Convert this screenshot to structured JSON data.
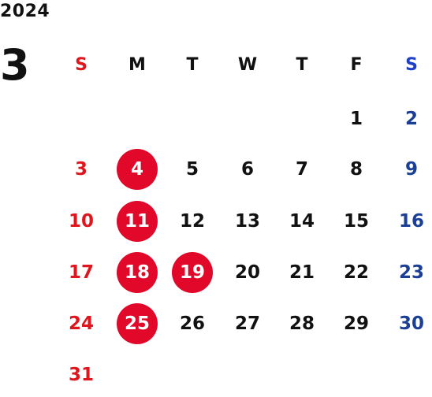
{
  "year": "2024",
  "month": "3",
  "weekday_headers": [
    "S",
    "M",
    "T",
    "W",
    "T",
    "F",
    "S"
  ],
  "weeks": [
    [
      "",
      "",
      "",
      "",
      "",
      "1",
      "2"
    ],
    [
      "3",
      "4",
      "5",
      "6",
      "7",
      "8",
      "9"
    ],
    [
      "10",
      "11",
      "12",
      "13",
      "14",
      "15",
      "16"
    ],
    [
      "17",
      "18",
      "19",
      "20",
      "21",
      "22",
      "23"
    ],
    [
      "24",
      "25",
      "26",
      "27",
      "28",
      "29",
      "30"
    ],
    [
      "31",
      "",
      "",
      "",
      "",
      "",
      ""
    ]
  ],
  "highlighted_days": [
    "4",
    "11",
    "18",
    "19",
    "25"
  ],
  "colors": {
    "sunday": "#e0161e",
    "saturday": "#1a3f96",
    "weekday": "#111111",
    "highlight_circle": "#e1082a",
    "highlight_text": "#ffffff"
  }
}
